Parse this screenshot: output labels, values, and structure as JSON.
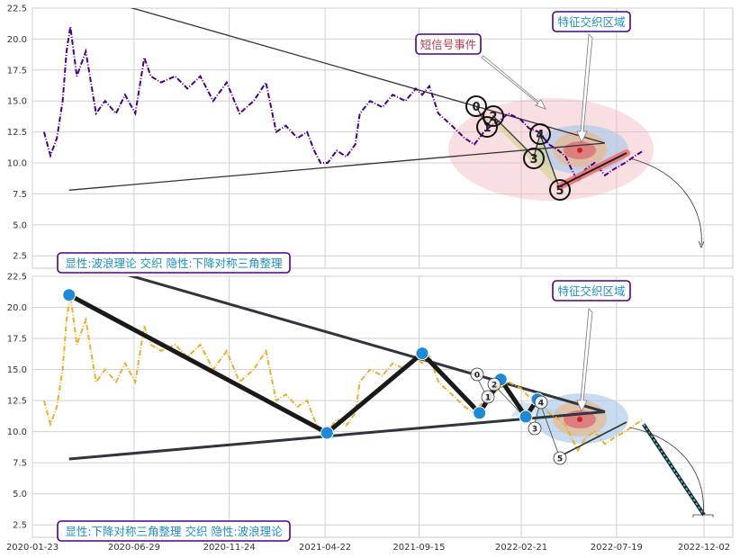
{
  "chart_data": [
    {
      "type": "line",
      "title": "",
      "xlabel": "",
      "ylabel": "",
      "ylim": [
        1.5,
        22.5
      ],
      "yticks": [
        2.5,
        5.0,
        7.5,
        10.0,
        12.5,
        15.0,
        17.5,
        20.0,
        22.5
      ],
      "grid": true,
      "series": [
        {
          "color": "#4b0082",
          "style": "dash-dot",
          "x": [
            "2020-02-10",
            "2020-02-20",
            "2020-03-01",
            "2020-03-10",
            "2020-03-16",
            "2020-03-22",
            "2020-04-01",
            "2020-04-15",
            "2020-05-01",
            "2020-05-15",
            "2020-06-01",
            "2020-06-15",
            "2020-07-01",
            "2020-07-15",
            "2020-07-25",
            "2020-08-10",
            "2020-09-01",
            "2020-09-20",
            "2020-10-10",
            "2020-10-30",
            "2020-11-20",
            "2020-12-10",
            "2021-01-01",
            "2021-01-20",
            "2021-02-05",
            "2021-02-20",
            "2021-03-10",
            "2021-03-25",
            "2021-04-05",
            "2021-04-15",
            "2021-04-26",
            "2021-05-10",
            "2021-05-25",
            "2021-06-08",
            "2021-06-15",
            "2021-07-01",
            "2021-07-20",
            "2021-08-05",
            "2021-08-25",
            "2021-09-10",
            "2021-09-20",
            "2021-10-01",
            "2021-10-15",
            "2021-11-05",
            "2021-11-25",
            "2021-12-10",
            "2021-12-25",
            "2022-01-05",
            "2022-01-20",
            "2022-02-01",
            "2022-02-20",
            "2022-03-05",
            "2022-03-20",
            "2022-04-05",
            "2022-04-20",
            "2022-05-01",
            "2022-05-10",
            "2022-05-20",
            "2022-06-01",
            "2022-06-15",
            "2022-07-01",
            "2022-07-15",
            "2022-08-01",
            "2022-08-15",
            "2022-08-30"
          ],
          "values": [
            12.5,
            10.6,
            12.0,
            15.0,
            19.0,
            21.0,
            17.0,
            19.0,
            14.0,
            15.0,
            14.0,
            15.5,
            14.0,
            18.5,
            17.0,
            16.5,
            17.0,
            16.0,
            17.0,
            15.0,
            16.5,
            14.0,
            15.0,
            16.5,
            12.5,
            13.0,
            12.0,
            12.5,
            11.0,
            10.0,
            10.0,
            11.0,
            10.5,
            11.5,
            14.0,
            15.0,
            14.5,
            15.5,
            15.0,
            16.0,
            15.5,
            16.2,
            14.0,
            13.0,
            12.0,
            11.5,
            12.5,
            13.0,
            13.5,
            14.0,
            13.5,
            12.8,
            12.5,
            11.5,
            11.0,
            10.5,
            9.5,
            8.5,
            9.5,
            10.0,
            9.0,
            9.5,
            10.0,
            10.5,
            11.0
          ]
        }
      ],
      "trendlines": [
        {
          "x": [
            "2020-03-20",
            "2022-07-01"
          ],
          "y": [
            7.8,
            11.6
          ]
        },
        {
          "x": [
            "2020-01-10",
            "2022-07-01"
          ],
          "y": [
            25.0,
            11.6
          ]
        }
      ],
      "wave_labels": [
        "0",
        "1",
        "2",
        "3",
        "4",
        "5"
      ],
      "annotations": [
        "短信号事件",
        "特征交织区域"
      ],
      "label": "显性:波浪理论 交织 隐性:下降对称三角整理"
    },
    {
      "type": "line",
      "title": "",
      "xlabel": "",
      "ylabel": "",
      "ylim": [
        1.5,
        22.5
      ],
      "yticks": [
        2.5,
        5.0,
        7.5,
        10.0,
        12.5,
        15.0,
        17.5,
        20.0,
        22.5
      ],
      "xticks": [
        "2020-01-23",
        "2020-06-29",
        "2020-11-24",
        "2021-04-22",
        "2021-09-15",
        "2022-02-21",
        "2022-07-19",
        "2022-12-02"
      ],
      "grid": true,
      "series": [
        {
          "color": "#e8b030",
          "style": "dash-dot",
          "x": [
            "2020-02-10",
            "2020-02-20",
            "2020-03-01",
            "2020-03-10",
            "2020-03-16",
            "2020-03-22",
            "2020-04-01",
            "2020-04-15",
            "2020-05-01",
            "2020-05-15",
            "2020-06-01",
            "2020-06-15",
            "2020-07-01",
            "2020-07-15",
            "2020-07-25",
            "2020-08-10",
            "2020-09-01",
            "2020-09-20",
            "2020-10-10",
            "2020-10-30",
            "2020-11-20",
            "2020-12-10",
            "2021-01-01",
            "2021-01-20",
            "2021-02-05",
            "2021-02-20",
            "2021-03-10",
            "2021-03-25",
            "2021-04-05",
            "2021-04-15",
            "2021-04-26",
            "2021-05-10",
            "2021-05-25",
            "2021-06-08",
            "2021-06-15",
            "2021-07-01",
            "2021-07-20",
            "2021-08-05",
            "2021-08-25",
            "2021-09-10",
            "2021-09-20",
            "2021-10-01",
            "2021-10-15",
            "2021-11-05",
            "2021-11-25",
            "2021-12-10",
            "2021-12-25",
            "2022-01-05",
            "2022-01-20",
            "2022-02-01",
            "2022-02-20",
            "2022-03-05",
            "2022-03-20",
            "2022-04-05",
            "2022-04-20",
            "2022-05-01",
            "2022-05-10",
            "2022-05-20",
            "2022-06-01",
            "2022-06-15",
            "2022-07-01",
            "2022-07-15",
            "2022-08-01",
            "2022-08-15",
            "2022-08-30"
          ],
          "values": [
            12.5,
            10.6,
            12.0,
            15.0,
            19.0,
            21.0,
            17.0,
            19.0,
            14.0,
            15.0,
            14.0,
            15.5,
            14.0,
            18.5,
            17.0,
            16.5,
            17.0,
            16.0,
            17.0,
            15.0,
            16.5,
            14.0,
            15.0,
            16.5,
            12.5,
            13.0,
            12.0,
            12.5,
            11.0,
            10.0,
            10.0,
            11.0,
            10.5,
            11.5,
            14.0,
            15.0,
            14.5,
            15.5,
            15.0,
            16.0,
            15.5,
            16.2,
            14.0,
            13.0,
            12.0,
            11.5,
            12.5,
            13.0,
            13.5,
            14.0,
            13.5,
            12.8,
            12.5,
            11.5,
            11.0,
            10.5,
            9.5,
            8.5,
            9.5,
            10.0,
            9.0,
            9.5,
            10.0,
            10.5,
            11.0
          ]
        }
      ],
      "pivots": {
        "x": [
          "2020-03-20",
          "2021-04-25",
          "2021-09-20",
          "2021-12-18",
          "2022-01-20",
          "2022-02-28",
          "2022-03-18"
        ],
        "y": [
          21.0,
          9.9,
          16.3,
          11.5,
          14.2,
          11.2,
          12.6
        ]
      },
      "trendlines": [
        {
          "x": [
            "2020-03-20",
            "2022-07-01"
          ],
          "y": [
            7.8,
            11.6
          ]
        },
        {
          "x": [
            "2020-01-10",
            "2022-07-01"
          ],
          "y": [
            25.0,
            11.6
          ]
        }
      ],
      "projection": {
        "x": [
          "2022-08-30",
          "2022-12-02"
        ],
        "y": [
          10.6,
          3.3
        ]
      },
      "wave_labels": [
        "0",
        "1",
        "2",
        "3",
        "4",
        "5"
      ],
      "annotations": [
        "特征交织区域"
      ],
      "label": "显性:下降对称三角整理 交织 隐性:波浪理论"
    }
  ]
}
